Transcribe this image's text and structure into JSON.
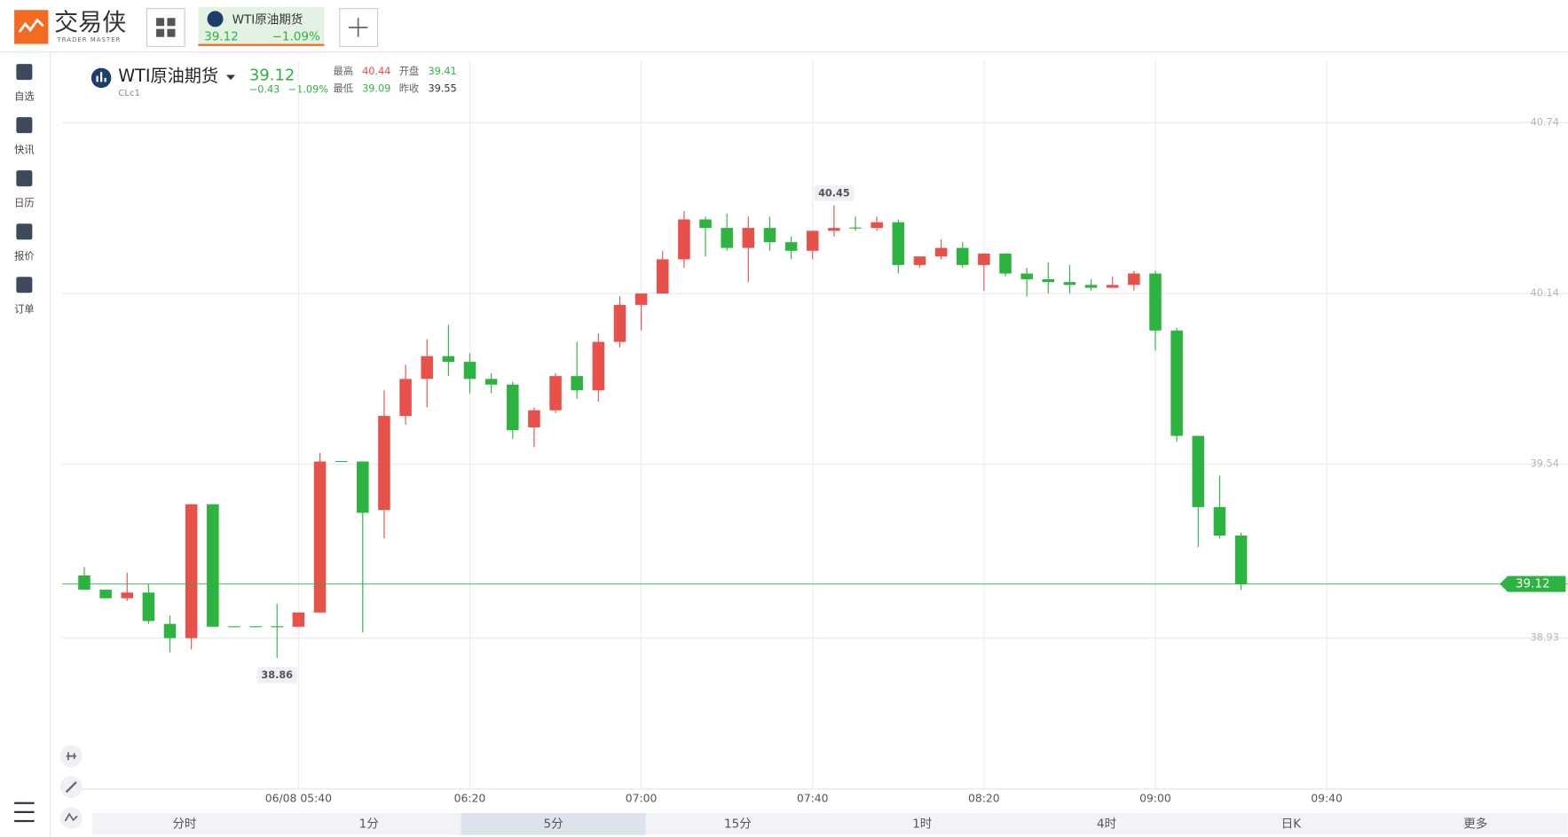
{
  "header": {
    "logo": "交易侠",
    "logo_sub": "TRADER MASTER",
    "tab": {
      "name": "WTI原油期货",
      "price": "39.12",
      "change_pct": "−1.09%"
    }
  },
  "sidebar": {
    "items": [
      "自选",
      "快讯",
      "日历",
      "报价",
      "订单"
    ]
  },
  "quote": {
    "name": "WTI原油期货",
    "code": "CLc1",
    "price": "39.12",
    "change": "−0.43",
    "change_pct": "−1.09%",
    "stats": [
      {
        "label": "最高",
        "value": "40.44",
        "color": "#e8504a"
      },
      {
        "label": "开盘",
        "value": "39.41",
        "color": "#2db340"
      },
      {
        "label": "最低",
        "value": "39.09",
        "color": "#2db340"
      },
      {
        "label": "昨收",
        "value": "39.55",
        "color": "#333333"
      }
    ]
  },
  "chart_data": {
    "type": "candlestick",
    "categories": [
      null,
      null,
      null,
      null,
      null,
      null,
      null,
      null,
      null,
      null,
      "06/08 05:40",
      null,
      null,
      null,
      null,
      null,
      null,
      null,
      "06:20",
      null,
      null,
      null,
      null,
      null,
      null,
      null,
      "07:00",
      null,
      null,
      null,
      null,
      null,
      null,
      null,
      "07:40",
      null,
      null,
      null,
      null,
      null,
      null,
      null,
      "08:20",
      null,
      null,
      null,
      null,
      null,
      null,
      null,
      "09:00",
      null,
      null,
      null,
      null,
      null,
      null,
      null,
      "09:40"
    ],
    "open": [
      39.15,
      39.1,
      39.07,
      39.09,
      38.98,
      38.93,
      39.4,
      38.97,
      38.97,
      38.97,
      38.97,
      39.02,
      39.55,
      39.55,
      39.38,
      39.71,
      39.84,
      39.92,
      39.9,
      39.84,
      39.82,
      39.67,
      39.73,
      39.85,
      39.8,
      39.97,
      40.1,
      40.14,
      40.26,
      40.4,
      40.37,
      40.3,
      40.37,
      40.32,
      40.29,
      40.36,
      40.37,
      40.37,
      40.39,
      40.24,
      40.27,
      40.3,
      40.24,
      40.28,
      40.21,
      40.19,
      40.18,
      40.17,
      40.16,
      40.17,
      40.21,
      40.01,
      39.64,
      39.39,
      39.29,
      null,
      null,
      null,
      null
    ],
    "high": [
      39.18,
      39.1,
      39.16,
      39.12,
      39.01,
      39.4,
      39.4,
      38.97,
      38.97,
      39.05,
      39.02,
      39.58,
      39.55,
      39.55,
      39.8,
      39.89,
      39.98,
      40.03,
      39.93,
      39.86,
      39.83,
      39.74,
      39.86,
      39.97,
      40.0,
      40.13,
      40.14,
      40.29,
      40.43,
      40.41,
      40.42,
      40.41,
      40.41,
      40.34,
      40.36,
      40.45,
      40.41,
      40.41,
      40.4,
      40.27,
      40.33,
      40.32,
      40.28,
      40.28,
      40.23,
      40.25,
      40.24,
      40.19,
      40.2,
      40.22,
      40.22,
      40.02,
      39.64,
      39.5,
      39.3,
      null,
      null,
      null,
      null
    ],
    "low": [
      39.1,
      39.07,
      39.06,
      38.98,
      38.88,
      38.89,
      38.97,
      38.97,
      38.97,
      38.86,
      38.97,
      39.02,
      39.55,
      38.95,
      39.28,
      39.68,
      39.74,
      39.85,
      39.79,
      39.79,
      39.63,
      39.6,
      39.72,
      39.77,
      39.76,
      39.95,
      40.01,
      40.14,
      40.23,
      40.27,
      40.29,
      40.18,
      40.29,
      40.26,
      40.26,
      40.34,
      40.36,
      40.36,
      40.21,
      40.23,
      40.26,
      40.23,
      40.15,
      40.2,
      40.13,
      40.14,
      40.14,
      40.15,
      40.16,
      40.15,
      39.94,
      39.62,
      39.25,
      39.28,
      39.1,
      null,
      null,
      null,
      null
    ],
    "close": [
      39.1,
      39.07,
      39.09,
      38.99,
      38.93,
      39.4,
      38.97,
      38.97,
      38.97,
      38.97,
      39.02,
      39.55,
      39.55,
      39.37,
      39.71,
      39.84,
      39.92,
      39.9,
      39.84,
      39.82,
      39.66,
      39.73,
      39.85,
      39.8,
      39.97,
      40.1,
      40.14,
      40.26,
      40.4,
      40.37,
      40.3,
      40.37,
      40.32,
      40.29,
      40.36,
      40.37,
      40.37,
      40.39,
      40.24,
      40.27,
      40.3,
      40.24,
      40.28,
      40.21,
      40.19,
      40.18,
      40.17,
      40.16,
      40.17,
      40.21,
      40.01,
      39.64,
      39.39,
      39.29,
      39.12,
      null,
      null,
      null,
      null
    ],
    "up_color": "#e8504a",
    "down_color": "#2db340",
    "ylim": [
      38.4,
      40.96
    ],
    "yticks": [
      38.93,
      39.54,
      40.14,
      40.74
    ],
    "grid": true
  },
  "periods": {
    "items": [
      "分时",
      "1分",
      "5分",
      "15分",
      "1时",
      "4时",
      "日K",
      "更多"
    ],
    "selected": 2
  }
}
